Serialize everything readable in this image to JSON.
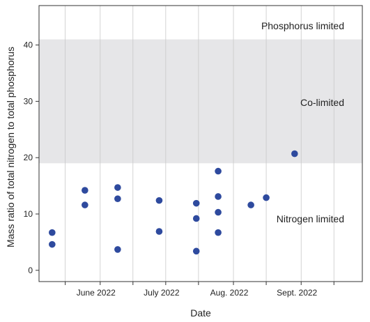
{
  "chart_data": {
    "type": "scatter",
    "xlabel": "Date",
    "ylabel": "Mass ratio of total nitrogen to total phosphorus",
    "x_domain": [
      "2022-05-04",
      "2022-09-29"
    ],
    "x_ticks": [
      {
        "date": "2022-06-01",
        "label": "June 2022"
      },
      {
        "date": "2022-07-01",
        "label": "July 2022"
      },
      {
        "date": "2022-08-01",
        "label": "Aug. 2022"
      },
      {
        "date": "2022-09-01",
        "label": "Sept. 2022"
      }
    ],
    "ylim": [
      -2,
      47
    ],
    "y_ticks": [
      0,
      10,
      20,
      30,
      40
    ],
    "grid": "vertical gridlines at month boundaries and midpoints",
    "bands": [
      {
        "label": "Nitrogen limited",
        "y_from": -2,
        "y_to": 19,
        "color": "#ffffff"
      },
      {
        "label": "Co-limited",
        "y_from": 19,
        "y_to": 41,
        "color": "#e6e6e8"
      },
      {
        "label": "Phosphorus limited",
        "y_from": 41,
        "y_to": 47,
        "color": "#ffffff"
      }
    ],
    "marker_color": "#2e4a9e",
    "points": [
      {
        "x": "2022-05-10",
        "y": 6.7
      },
      {
        "x": "2022-05-10",
        "y": 4.6
      },
      {
        "x": "2022-05-25",
        "y": 14.2
      },
      {
        "x": "2022-05-25",
        "y": 11.6
      },
      {
        "x": "2022-06-09",
        "y": 14.7
      },
      {
        "x": "2022-06-09",
        "y": 12.7
      },
      {
        "x": "2022-06-09",
        "y": 3.7
      },
      {
        "x": "2022-06-28",
        "y": 12.4
      },
      {
        "x": "2022-06-28",
        "y": 6.9
      },
      {
        "x": "2022-07-15",
        "y": 11.9
      },
      {
        "x": "2022-07-15",
        "y": 9.2
      },
      {
        "x": "2022-07-15",
        "y": 3.4
      },
      {
        "x": "2022-07-25",
        "y": 17.6
      },
      {
        "x": "2022-07-25",
        "y": 13.1
      },
      {
        "x": "2022-07-25",
        "y": 10.3
      },
      {
        "x": "2022-07-25",
        "y": 6.7
      },
      {
        "x": "2022-08-09",
        "y": 11.6
      },
      {
        "x": "2022-08-16",
        "y": 12.9
      },
      {
        "x": "2022-08-29",
        "y": 20.7
      }
    ]
  }
}
